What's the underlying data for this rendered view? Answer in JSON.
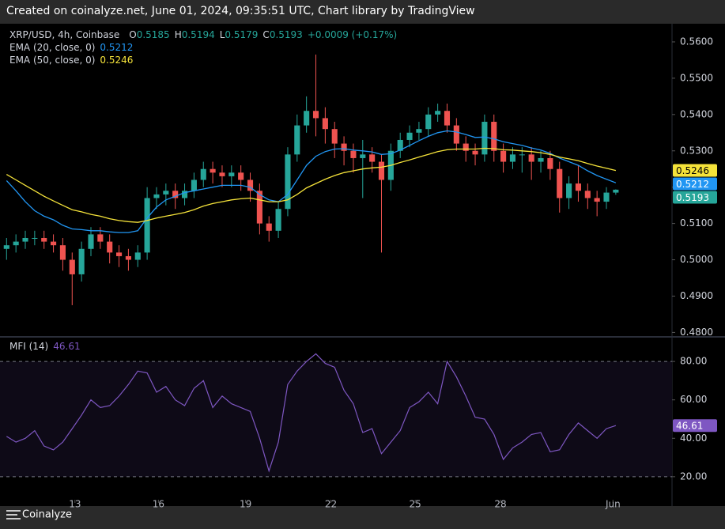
{
  "header": {
    "text": "Created on coinalyze.net, June 01, 2024, 09:35:51 UTC, Chart library by TradingView"
  },
  "footer": {
    "brand": "Coinalyze"
  },
  "chart_data": [
    {
      "type": "candlestick",
      "title": "XRP/USD, 4h, Coinbase",
      "ohlc_labels": [
        "O",
        "H",
        "L",
        "C"
      ],
      "change": "+0.0009 (+0.17%)",
      "up_color": "#26a69a",
      "down_color": "#ef5350",
      "grid": false,
      "open": [
        0.503,
        0.504,
        0.505,
        0.506,
        0.506,
        0.505,
        0.504,
        0.5,
        0.496,
        0.503,
        0.507,
        0.505,
        0.502,
        0.501,
        0.5,
        0.502,
        0.517,
        0.518,
        0.519,
        0.517,
        0.519,
        0.522,
        0.525,
        0.524,
        0.523,
        0.524,
        0.522,
        0.519,
        0.51,
        0.508,
        0.514,
        0.529,
        0.537,
        0.541,
        0.539,
        0.536,
        0.532,
        0.53,
        0.528,
        0.529,
        0.527,
        0.522,
        0.53,
        0.533,
        0.535,
        0.536,
        0.54,
        0.541,
        0.537,
        0.532,
        0.53,
        0.529,
        0.538,
        0.53,
        0.527,
        0.529,
        0.529,
        0.527,
        0.528,
        0.525,
        0.517,
        0.521,
        0.519,
        0.517,
        0.516,
        0.5185
      ],
      "high": [
        0.506,
        0.507,
        0.508,
        0.508,
        0.508,
        0.507,
        0.506,
        0.502,
        0.505,
        0.509,
        0.509,
        0.507,
        0.504,
        0.503,
        0.504,
        0.52,
        0.52,
        0.521,
        0.521,
        0.521,
        0.524,
        0.527,
        0.527,
        0.526,
        0.526,
        0.526,
        0.524,
        0.521,
        0.512,
        0.516,
        0.531,
        0.54,
        0.545,
        0.5565,
        0.542,
        0.538,
        0.534,
        0.532,
        0.533,
        0.531,
        0.529,
        0.532,
        0.535,
        0.537,
        0.538,
        0.542,
        0.543,
        0.543,
        0.539,
        0.534,
        0.532,
        0.54,
        0.54,
        0.532,
        0.531,
        0.531,
        0.531,
        0.53,
        0.53,
        0.527,
        0.523,
        0.526,
        0.521,
        0.519,
        0.52,
        0.5194
      ],
      "low": [
        0.5,
        0.502,
        0.503,
        0.504,
        0.503,
        0.502,
        0.497,
        0.4875,
        0.494,
        0.501,
        0.503,
        0.499,
        0.498,
        0.497,
        0.498,
        0.5,
        0.514,
        0.515,
        0.514,
        0.515,
        0.517,
        0.52,
        0.521,
        0.52,
        0.52,
        0.519,
        0.516,
        0.507,
        0.505,
        0.506,
        0.512,
        0.527,
        0.535,
        0.534,
        0.532,
        0.528,
        0.526,
        0.524,
        0.517,
        0.524,
        0.502,
        0.519,
        0.528,
        0.531,
        0.533,
        0.534,
        0.538,
        0.535,
        0.53,
        0.527,
        0.526,
        0.527,
        0.527,
        0.524,
        0.525,
        0.524,
        0.522,
        0.524,
        0.522,
        0.513,
        0.514,
        0.516,
        0.514,
        0.512,
        0.514,
        0.5179
      ],
      "close": [
        0.504,
        0.505,
        0.506,
        0.506,
        0.505,
        0.504,
        0.5,
        0.496,
        0.503,
        0.507,
        0.505,
        0.502,
        0.501,
        0.5,
        0.502,
        0.517,
        0.518,
        0.519,
        0.517,
        0.519,
        0.522,
        0.525,
        0.524,
        0.523,
        0.524,
        0.522,
        0.519,
        0.51,
        0.508,
        0.514,
        0.529,
        0.537,
        0.541,
        0.539,
        0.536,
        0.532,
        0.53,
        0.528,
        0.529,
        0.527,
        0.522,
        0.53,
        0.533,
        0.535,
        0.536,
        0.54,
        0.541,
        0.537,
        0.532,
        0.53,
        0.529,
        0.538,
        0.53,
        0.527,
        0.529,
        0.529,
        0.527,
        0.528,
        0.525,
        0.517,
        0.521,
        0.519,
        0.517,
        0.516,
        0.5185,
        0.5193
      ],
      "series": [
        {
          "name": "EMA (20, close, 0)",
          "color": "#2196f3",
          "values": [
            0.5218,
            0.519,
            0.516,
            0.5135,
            0.512,
            0.511,
            0.5095,
            0.5085,
            0.5083,
            0.508,
            0.508,
            0.5077,
            0.5075,
            0.5075,
            0.508,
            0.5115,
            0.5145,
            0.5165,
            0.5175,
            0.5185,
            0.519,
            0.5195,
            0.52,
            0.5205,
            0.5205,
            0.5205,
            0.52,
            0.518,
            0.5165,
            0.516,
            0.518,
            0.522,
            0.526,
            0.5285,
            0.5298,
            0.5305,
            0.5306,
            0.5302,
            0.53,
            0.5297,
            0.529,
            0.5292,
            0.5302,
            0.5315,
            0.5328,
            0.534,
            0.535,
            0.5355,
            0.5352,
            0.5345,
            0.5337,
            0.5338,
            0.5333,
            0.5325,
            0.532,
            0.5315,
            0.5308,
            0.5302,
            0.5293,
            0.528,
            0.527,
            0.526,
            0.5245,
            0.5232,
            0.5222,
            0.5212
          ]
        },
        {
          "name": "EMA (50, close, 0)",
          "color": "#f5e33a",
          "values": [
            0.5235,
            0.522,
            0.5205,
            0.519,
            0.5175,
            0.5162,
            0.515,
            0.5138,
            0.5132,
            0.5125,
            0.512,
            0.5113,
            0.5108,
            0.5105,
            0.5103,
            0.5108,
            0.5115,
            0.512,
            0.5125,
            0.513,
            0.5138,
            0.5148,
            0.5155,
            0.516,
            0.5165,
            0.5168,
            0.517,
            0.5165,
            0.516,
            0.516,
            0.5165,
            0.518,
            0.5198,
            0.521,
            0.5222,
            0.5232,
            0.524,
            0.5245,
            0.525,
            0.5253,
            0.5255,
            0.526,
            0.5268,
            0.5275,
            0.5283,
            0.529,
            0.5298,
            0.5303,
            0.5305,
            0.5305,
            0.5305,
            0.5307,
            0.5306,
            0.5303,
            0.5302,
            0.53,
            0.5298,
            0.5295,
            0.529,
            0.5283,
            0.5278,
            0.5273,
            0.5265,
            0.5258,
            0.5252,
            0.5246
          ]
        }
      ],
      "xlim": [
        -0.7,
        71
      ],
      "xticks": [
        {
          "value": 7.3,
          "label": "13"
        },
        {
          "value": 16.2,
          "label": "16"
        },
        {
          "value": 25.5,
          "label": "19"
        },
        {
          "value": 34.6,
          "label": "22"
        },
        {
          "value": 43.6,
          "label": "25"
        },
        {
          "value": 52.7,
          "label": "28"
        },
        {
          "value": 64.7,
          "label": "Jun"
        }
      ],
      "ylim": [
        0.479,
        0.565
      ],
      "yticks": [
        {
          "value": 0.48,
          "label": "0.4800"
        },
        {
          "value": 0.49,
          "label": "0.4900"
        },
        {
          "value": 0.5,
          "label": "0.5000"
        },
        {
          "value": 0.51,
          "label": "0.5100"
        },
        {
          "value": 0.52,
          "label": "0.5200"
        },
        {
          "value": 0.53,
          "label": "0.5300"
        },
        {
          "value": 0.54,
          "label": "0.5400"
        },
        {
          "value": 0.55,
          "label": "0.5500"
        },
        {
          "value": 0.56,
          "label": "0.5600"
        }
      ]
    },
    {
      "type": "line",
      "series": [
        {
          "name": "MFI (14)",
          "color": "#7e57c2",
          "values": [
            41,
            38,
            40,
            44,
            36,
            34,
            38,
            45,
            52,
            60,
            56,
            57,
            62,
            68,
            75,
            74,
            64,
            67,
            60,
            57,
            66,
            70,
            56,
            62,
            58,
            56,
            54,
            40,
            23,
            38,
            68,
            75,
            80,
            84,
            79,
            77,
            65,
            58,
            43,
            45,
            32,
            38,
            44,
            56,
            59,
            64,
            58,
            80,
            72,
            62,
            51,
            50,
            42,
            29,
            35,
            38,
            42,
            43,
            33,
            34,
            42,
            48,
            44,
            40,
            45,
            46.61
          ]
        }
      ],
      "xlim": [
        -0.7,
        71
      ],
      "ylim": [
        8,
        92
      ],
      "yticks": [
        {
          "value": 20,
          "label": "20.00"
        },
        {
          "value": 40,
          "label": "40.00"
        },
        {
          "value": 60,
          "label": "60.00"
        },
        {
          "value": 80,
          "label": "80.00"
        }
      ],
      "levels": [
        20,
        80
      ]
    }
  ]
}
